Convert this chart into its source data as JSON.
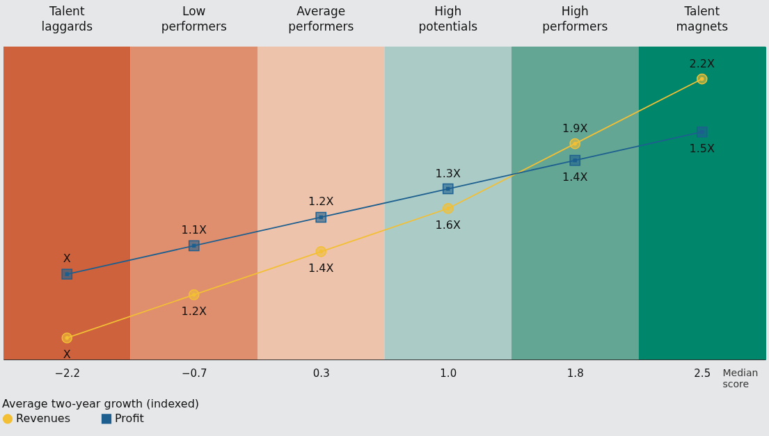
{
  "chart_data": {
    "type": "line",
    "categories": [
      "−2.2",
      "−0.7",
      "0.3",
      "1.0",
      "1.8",
      "2.5"
    ],
    "xlabel": "Median score",
    "legend_title": "Average two-year growth (indexed)",
    "legend": "bottom",
    "tick_labels": "x",
    "ylim": [
      0.9,
      2.35
    ],
    "y2lim": [
      0.7,
      1.8
    ],
    "series": [
      {
        "name": "Revenues",
        "color": "#f2bf35",
        "marker": "circle",
        "values": [
          1,
          1.2,
          1.4,
          1.6,
          1.9,
          2.2
        ],
        "value_labels": [
          "X",
          "1.2X",
          "1.4X",
          "1.6X",
          "1.9X",
          "2.2X"
        ]
      },
      {
        "name": "Profit",
        "color": "#1d5f8f",
        "marker": "square",
        "axis": "y2",
        "values": [
          1,
          1.1,
          1.2,
          1.3,
          1.4,
          1.5
        ],
        "value_labels": [
          "X",
          "1.1X",
          "1.2X",
          "1.3X",
          "1.4X",
          "1.5X"
        ]
      }
    ],
    "bands": [
      {
        "axis": "x",
        "from": "−2.2",
        "to": "−2.2",
        "label": "Talent laggards",
        "color": "#cd623c"
      },
      {
        "axis": "x",
        "from": "−0.7",
        "to": "−0.7",
        "label": "Low performers",
        "color": "#df8f6e"
      },
      {
        "axis": "x",
        "from": "0.3",
        "to": "0.3",
        "label": "Average performers",
        "color": "#eec3ab"
      },
      {
        "axis": "x",
        "from": "1.0",
        "to": "1.0",
        "label": "High potentials",
        "color": "#abccc6"
      },
      {
        "axis": "x",
        "from": "1.8",
        "to": "1.8",
        "label": "High performers",
        "color": "#63a694"
      },
      {
        "axis": "x",
        "from": "2.5",
        "to": "2.5",
        "label": "Talent magnets",
        "color": "#00876b"
      }
    ]
  }
}
